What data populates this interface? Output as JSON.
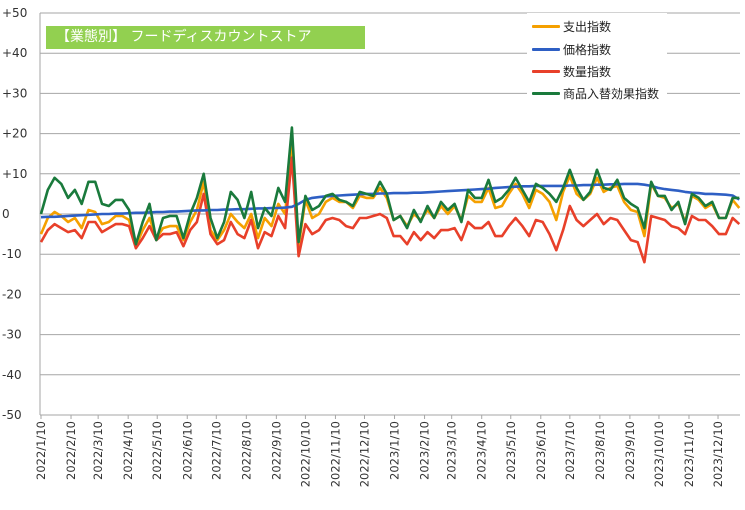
{
  "chart_data": {
    "type": "line",
    "title": "【業態別】 フードディスカウントストア",
    "xlabel": "",
    "ylabel": "",
    "ylim": [
      -50,
      50
    ],
    "yticks": [
      "+50",
      "+40",
      "+30",
      "+20",
      "+10",
      "0",
      "-10",
      "-20",
      "-30",
      "-40",
      "-50"
    ],
    "ytick_values": [
      50,
      40,
      30,
      20,
      10,
      0,
      -10,
      -20,
      -30,
      -40,
      -50
    ],
    "x_start": "2022/1/10",
    "x_interval": "weekly",
    "xticks": [
      "2022/1/10",
      "2022/2/10",
      "2022/3/10",
      "2022/4/10",
      "2022/5/10",
      "2022/6/10",
      "2022/7/10",
      "2022/8/10",
      "2022/9/10",
      "2022/10/10",
      "2022/11/10",
      "2022/12/10",
      "2023/1/10",
      "2023/2/10",
      "2023/3/10",
      "2023/4/10",
      "2023/5/10",
      "2023/6/10",
      "2023/7/10",
      "2023/8/10",
      "2023/9/10",
      "2023/10/10",
      "2023/11/10",
      "2023/12/10"
    ],
    "grid": true,
    "legend_position": "top-right",
    "series": [
      {
        "name": "支出指数",
        "color": "#f5a000",
        "values": [
          -5,
          -1,
          0.5,
          -0.5,
          -2,
          -1,
          -3.5,
          1,
          0.5,
          -2.5,
          -2,
          -0.5,
          -0.5,
          -1.5,
          -8,
          -4,
          -1,
          -6,
          -3.5,
          -3,
          -3,
          -6.5,
          -2,
          1,
          8,
          -4,
          -6.5,
          -4,
          0,
          -2,
          -3.5,
          0,
          -6,
          -1,
          -3,
          2.5,
          0,
          17,
          -8,
          3.5,
          -1,
          0,
          3,
          4,
          3,
          3,
          1.5,
          4.5,
          4,
          4,
          6.5,
          4,
          -1.5,
          -0.5,
          -3,
          0,
          -1.5,
          1,
          -1,
          2,
          0,
          2,
          -1.5,
          4.5,
          3,
          3,
          6.5,
          1.5,
          2,
          5,
          7.5,
          5,
          1.5,
          6,
          5,
          3,
          -1.5,
          5.5,
          9.5,
          5,
          3.5,
          5,
          9,
          5.5,
          6.5,
          7,
          3,
          1,
          0.5,
          -5.5,
          7.5,
          4.5,
          4,
          1.5,
          2.5,
          -2,
          4.5,
          3.5,
          1.5,
          2.5,
          -1,
          -1,
          3.5,
          1.5
        ]
      },
      {
        "name": "価格指数",
        "color": "#2e5fc4",
        "values": [
          -0.8,
          -0.7,
          -0.7,
          -0.6,
          -0.5,
          -0.4,
          -0.3,
          -0.2,
          -0.1,
          0,
          0,
          0.1,
          0.1,
          0.2,
          0.3,
          0.3,
          0.4,
          0.5,
          0.5,
          0.6,
          0.6,
          0.7,
          0.8,
          0.9,
          0.9,
          1,
          1,
          1.1,
          1.1,
          1.2,
          1.2,
          1.3,
          1.4,
          1.4,
          1.5,
          1.5,
          1.6,
          1.8,
          2.5,
          3.5,
          4,
          4.2,
          4.4,
          4.5,
          4.6,
          4.7,
          4.8,
          4.9,
          5,
          5,
          5.1,
          5.1,
          5.2,
          5.2,
          5.2,
          5.3,
          5.3,
          5.4,
          5.5,
          5.6,
          5.7,
          5.8,
          5.9,
          6,
          6.1,
          6.2,
          6.3,
          6.5,
          6.6,
          6.7,
          6.8,
          6.9,
          6.9,
          7,
          7,
          7,
          7,
          7,
          7.1,
          7.1,
          7.2,
          7.2,
          7.3,
          7.3,
          7.4,
          7.4,
          7.5,
          7.5,
          7.5,
          7.3,
          7,
          6.5,
          6.2,
          6,
          5.8,
          5.5,
          5.3,
          5.2,
          5,
          5,
          4.9,
          4.8,
          4.6,
          3.6
        ]
      },
      {
        "name": "数量指数",
        "color": "#e8402a",
        "values": [
          -7,
          -4,
          -2.5,
          -3.5,
          -4.5,
          -4,
          -6,
          -2,
          -2,
          -4.5,
          -3.5,
          -2.5,
          -2.5,
          -3,
          -8.5,
          -6,
          -3,
          -6.5,
          -5,
          -5,
          -4.5,
          -8,
          -4,
          -2,
          5,
          -5,
          -7.5,
          -6.5,
          -2,
          -5,
          -6,
          -1.5,
          -8.5,
          -4.5,
          -5.5,
          -0.5,
          -3.5,
          14,
          -10.5,
          -2.5,
          -5,
          -4,
          -1.5,
          -1,
          -1.5,
          -3,
          -3.5,
          -1,
          -1,
          -0.5,
          0,
          -1,
          -5.5,
          -5.5,
          -7.5,
          -4.5,
          -6.5,
          -4.5,
          -6,
          -4,
          -4,
          -3.5,
          -6.5,
          -2,
          -3.5,
          -3.5,
          -2,
          -5.5,
          -5.5,
          -3,
          -1,
          -3,
          -5.5,
          -1.5,
          -2,
          -5,
          -9,
          -4,
          2,
          -1.5,
          -3,
          -1.5,
          0,
          -2.5,
          -1,
          -1.5,
          -4,
          -6.5,
          -7,
          -12,
          -0.5,
          -1,
          -1.5,
          -3,
          -3.5,
          -5,
          -0.5,
          -1.5,
          -1.5,
          -3,
          -5,
          -5,
          -1,
          -2.5
        ]
      },
      {
        "name": "商品入替効果指数",
        "color": "#1a7a3c",
        "values": [
          0,
          6,
          9,
          7.5,
          4,
          6,
          2.5,
          8,
          8,
          2.5,
          2,
          3.5,
          3.5,
          1,
          -7.5,
          -2,
          2.5,
          -6.5,
          -1,
          -0.5,
          -0.5,
          -6,
          0,
          4,
          10,
          -1,
          -6,
          -2,
          5.5,
          3.5,
          -1,
          5.5,
          -3.5,
          1.5,
          -0.5,
          6.5,
          3,
          21.5,
          -7,
          4.5,
          1,
          2,
          4.5,
          5,
          3.5,
          3,
          2,
          5.5,
          5,
          4.5,
          8,
          5,
          -1.5,
          -0.5,
          -3.5,
          1,
          -2,
          2,
          -1,
          3,
          1,
          2.5,
          -2,
          6,
          4,
          4,
          8.5,
          3,
          4,
          6,
          9,
          6,
          3,
          7.5,
          6.5,
          5,
          3,
          6.5,
          11,
          6.5,
          3.5,
          5.5,
          11,
          6.5,
          6,
          8.5,
          4,
          2.5,
          1.5,
          -3.5,
          8,
          4.5,
          4.5,
          1,
          3,
          -2.5,
          5,
          4,
          2,
          3,
          -1,
          -1,
          4,
          4
        ]
      }
    ]
  }
}
